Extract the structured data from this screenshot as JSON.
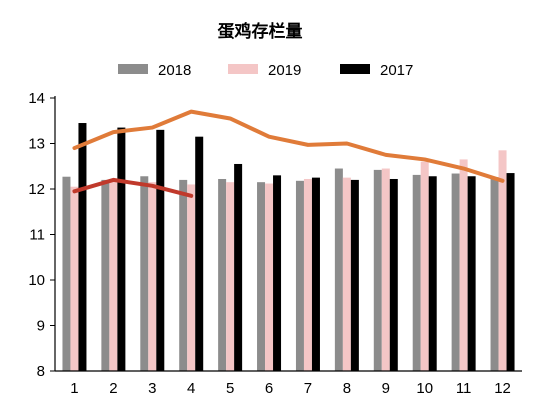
{
  "chart_data": {
    "type": "bar",
    "title": "蛋鸡存栏量",
    "categories": [
      "1",
      "2",
      "3",
      "4",
      "5",
      "6",
      "7",
      "8",
      "9",
      "10",
      "11",
      "12"
    ],
    "ylim": [
      8,
      14
    ],
    "yticks": [
      "8",
      "9",
      "10",
      "11",
      "12",
      "13",
      "14"
    ],
    "grid": false,
    "legend": "top",
    "series": [
      {
        "name": "2018",
        "kind": "bar",
        "color": "#8c8c8c",
        "values": [
          12.27,
          12.2,
          12.28,
          12.2,
          12.22,
          12.15,
          12.18,
          12.45,
          12.42,
          12.31,
          12.34,
          12.26
        ]
      },
      {
        "name": "2019",
        "kind": "bar",
        "color": "#f4c6c6",
        "values": [
          12.05,
          12.22,
          12.15,
          12.1,
          12.15,
          12.12,
          12.22,
          12.25,
          12.45,
          12.6,
          12.65,
          12.85
        ]
      },
      {
        "name": "2017",
        "kind": "bar",
        "color": "#000000",
        "values": [
          13.45,
          13.35,
          13.3,
          13.15,
          12.55,
          12.3,
          12.25,
          12.2,
          12.22,
          12.28,
          12.28,
          12.35
        ]
      },
      {
        "name": "",
        "kind": "line",
        "color": "#e07b39",
        "values": [
          12.9,
          13.25,
          13.35,
          13.7,
          13.55,
          13.15,
          12.97,
          13.0,
          12.75,
          12.65,
          12.45,
          12.18
        ]
      },
      {
        "name": "",
        "kind": "line",
        "color": "#c0392b",
        "values": [
          11.95,
          12.2,
          12.07,
          11.85,
          null,
          null,
          null,
          null,
          null,
          null,
          null,
          null
        ]
      }
    ]
  }
}
